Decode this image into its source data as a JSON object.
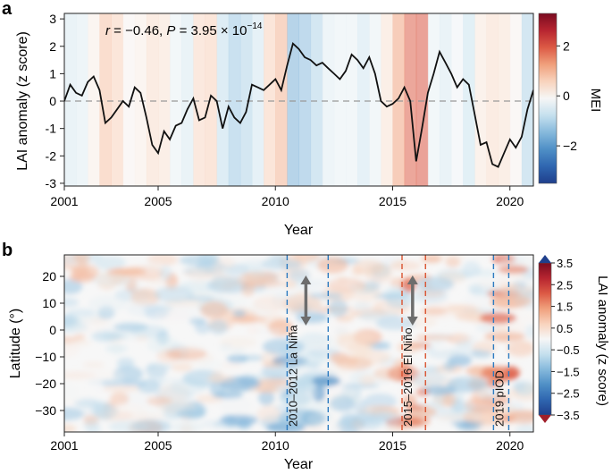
{
  "colors": {
    "line": "#111111",
    "zero_line": "#999999",
    "colorscale": [
      "#1f3f8c",
      "#2f66b0",
      "#4f8fc6",
      "#86b9dc",
      "#c5e0ee",
      "#f6f6f6",
      "#f8d3bd",
      "#f0a07c",
      "#dc5a45",
      "#b72530",
      "#7a0b20"
    ],
    "dashed_blue": "#2d7bc0",
    "dashed_red": "#d9522f",
    "arrow": "#6d6d6d"
  },
  "chart_data": [
    {
      "panel_label": "a",
      "type": "line",
      "xlabel": "Year",
      "ylabel": "LAI anomaly (z score)",
      "xlim": [
        2001,
        2021
      ],
      "ylim": [
        -3.1,
        3.2
      ],
      "xticks": [
        2001,
        2005,
        2010,
        2015,
        2020
      ],
      "yticks": [
        3,
        2,
        1,
        0,
        -1,
        -2,
        -3
      ],
      "zero_line": true,
      "annotation": {
        "r_label": "r",
        "r_value": " = −0.46, ",
        "p_label": "P",
        "p_value": " = 3.95 × 10",
        "p_exp": "−14"
      },
      "colorbar": {
        "label": "MEI",
        "ticks": [
          2,
          0,
          -2
        ],
        "range": [
          -3.5,
          3.3
        ]
      },
      "mei_background": {
        "x": [
          2001.0,
          2001.5,
          2002.0,
          2002.5,
          2003.0,
          2003.5,
          2004.0,
          2004.5,
          2005.0,
          2005.5,
          2006.0,
          2006.5,
          2007.0,
          2007.5,
          2008.0,
          2008.5,
          2009.0,
          2009.5,
          2010.0,
          2010.5,
          2011.0,
          2011.5,
          2012.0,
          2012.5,
          2013.0,
          2013.5,
          2014.0,
          2014.5,
          2015.0,
          2015.5,
          2016.0,
          2016.5,
          2017.0,
          2017.5,
          2018.0,
          2018.5,
          2019.0,
          2019.5,
          2020.0,
          2020.5
        ],
        "values": [
          -0.5,
          -0.4,
          0.1,
          0.8,
          0.6,
          0.0,
          0.1,
          0.4,
          0.3,
          -0.3,
          -0.5,
          0.5,
          0.6,
          -0.8,
          -1.2,
          -1.0,
          -0.6,
          0.6,
          1.0,
          -1.6,
          -1.4,
          -1.0,
          -0.4,
          -0.3,
          -0.3,
          -0.6,
          -0.3,
          0.3,
          1.2,
          1.9,
          2.0,
          -0.3,
          -0.5,
          -0.2,
          -0.7,
          0.2,
          0.4,
          0.3,
          0.0,
          -1.0
        ]
      },
      "series": [
        {
          "x": [
            2001.0,
            2001.25,
            2001.5,
            2001.75,
            2002.0,
            2002.25,
            2002.5,
            2002.75,
            2003.0,
            2003.25,
            2003.5,
            2003.75,
            2004.0,
            2004.25,
            2004.5,
            2004.75,
            2005.0,
            2005.25,
            2005.5,
            2005.75,
            2006.0,
            2006.25,
            2006.5,
            2006.75,
            2007.0,
            2007.25,
            2007.5,
            2007.75,
            2008.0,
            2008.25,
            2008.5,
            2008.75,
            2009.0,
            2009.25,
            2009.5,
            2009.75,
            2010.0,
            2010.25,
            2010.5,
            2010.75,
            2011.0,
            2011.25,
            2011.5,
            2011.75,
            2012.0,
            2012.25,
            2012.5,
            2012.75,
            2013.0,
            2013.25,
            2013.5,
            2013.75,
            2014.0,
            2014.25,
            2014.5,
            2014.75,
            2015.0,
            2015.25,
            2015.5,
            2015.75,
            2016.0,
            2016.25,
            2016.5,
            2016.75,
            2017.0,
            2017.25,
            2017.5,
            2017.75,
            2018.0,
            2018.25,
            2018.5,
            2018.75,
            2019.0,
            2019.25,
            2019.5,
            2019.75,
            2020.0,
            2020.25,
            2020.5,
            2020.75,
            2021.0
          ],
          "values": [
            0.0,
            0.6,
            0.3,
            0.2,
            0.7,
            0.9,
            0.4,
            -0.8,
            -0.6,
            -0.3,
            0.0,
            -0.2,
            0.5,
            0.3,
            -0.6,
            -1.6,
            -1.9,
            -1.1,
            -1.4,
            -0.9,
            -0.8,
            -0.3,
            0.1,
            -0.7,
            -0.6,
            0.2,
            0.0,
            -1.0,
            -0.2,
            -0.6,
            -0.8,
            -0.4,
            0.6,
            0.5,
            0.4,
            0.6,
            0.8,
            0.4,
            1.3,
            2.1,
            1.9,
            1.6,
            1.5,
            1.3,
            1.4,
            1.2,
            1.0,
            0.8,
            1.1,
            1.7,
            1.5,
            1.2,
            1.6,
            1.0,
            0.0,
            -0.2,
            -0.1,
            0.1,
            0.5,
            0.0,
            -2.2,
            -1.0,
            0.3,
            1.0,
            1.8,
            1.4,
            1.0,
            0.5,
            0.8,
            0.6,
            -0.5,
            -1.6,
            -1.5,
            -2.3,
            -2.4,
            -1.9,
            -1.4,
            -1.7,
            -1.3,
            -0.3,
            0.4
          ]
        }
      ]
    },
    {
      "panel_label": "b",
      "type": "heatmap",
      "xlabel": "Year",
      "ylabel": "Latitude (°)",
      "xlim": [
        2001,
        2021
      ],
      "ylim": [
        -38,
        28
      ],
      "xticks": [
        2001,
        2005,
        2010,
        2015,
        2020
      ],
      "yticks": [
        20,
        10,
        0,
        -10,
        -20,
        -30
      ],
      "colorbar": {
        "label": "LAI anomaly (z score)",
        "ticks": [
          "3.5",
          "2.5",
          "1.5",
          "0.5",
          "−0.5",
          "−1.5",
          "−2.5",
          "−3.5"
        ]
      },
      "events": [
        {
          "label": "2010–2012 La Niña",
          "start": 2010.5,
          "end": 2012.25,
          "color": "blue",
          "arrow_x": 2011.3
        },
        {
          "label": "2015–2016 El Niño",
          "start": 2015.4,
          "end": 2016.4,
          "color": "red",
          "arrow_x": 2015.85
        },
        {
          "label": "2019 pIOD",
          "start": 2019.3,
          "end": 2019.95,
          "color": "blue"
        }
      ],
      "arrow": {
        "from_lat": 2,
        "to_lat": 20
      }
    }
  ]
}
